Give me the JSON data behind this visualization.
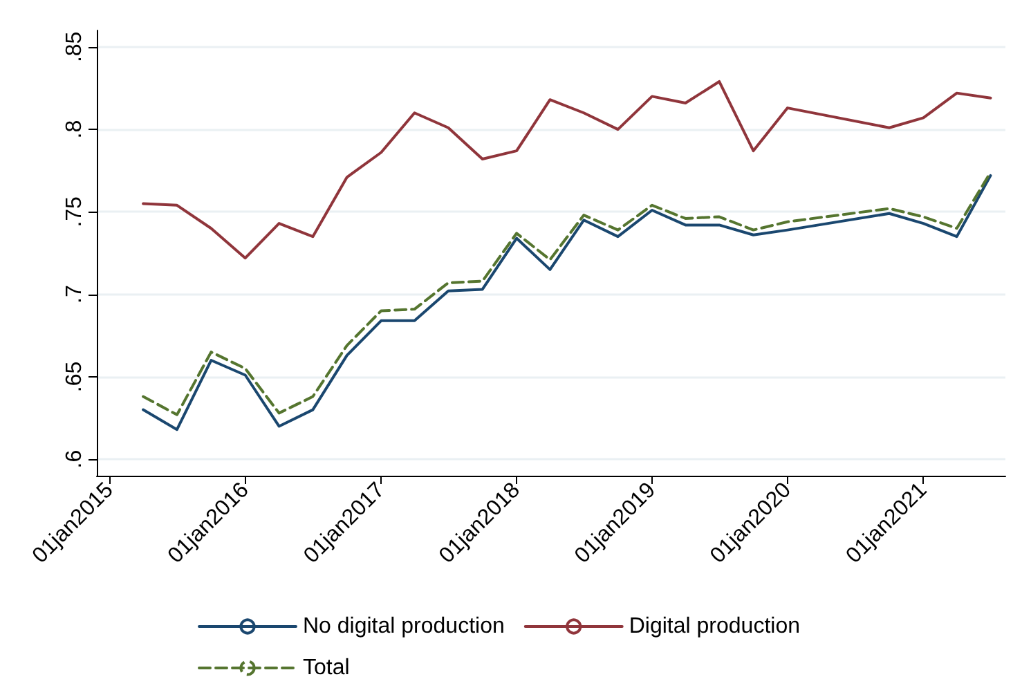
{
  "chart_data": {
    "type": "line",
    "marker": "none",
    "grid": "y",
    "legend": "bottom",
    "xlim": [
      "2014-11-27",
      "2021-08-10"
    ],
    "xticks": [
      {
        "value": "2015-01-01",
        "label": "01jan2015"
      },
      {
        "value": "2016-01-01",
        "label": "01jan2016"
      },
      {
        "value": "2017-01-01",
        "label": "01jan2017"
      },
      {
        "value": "2018-01-01",
        "label": "01jan2018"
      },
      {
        "value": "2019-01-01",
        "label": "01jan2019"
      },
      {
        "value": "2020-01-01",
        "label": "01jan2020"
      },
      {
        "value": "2021-01-01",
        "label": "01jan2021"
      }
    ],
    "ylim": [
      0.59,
      0.86
    ],
    "yticks": [
      {
        "value": 0.6,
        "label": ".6"
      },
      {
        "value": 0.65,
        "label": ".65"
      },
      {
        "value": 0.7,
        "label": ".7"
      },
      {
        "value": 0.75,
        "label": ".75"
      },
      {
        "value": 0.8,
        "label": ".8"
      },
      {
        "value": 0.85,
        "label": ".85"
      }
    ],
    "x": [
      "2015-04",
      "2015-07",
      "2015-10",
      "2016-01",
      "2016-04",
      "2016-07",
      "2016-10",
      "2017-01",
      "2017-04",
      "2017-07",
      "2017-10",
      "2018-01",
      "2018-04",
      "2018-07",
      "2018-10",
      "2019-01",
      "2019-04",
      "2019-07",
      "2019-10",
      "2020-01",
      "2020-10",
      "2021-01",
      "2021-04",
      "2021-07"
    ],
    "series": [
      {
        "name": "No digital production",
        "color": "#1a476f",
        "line_style": "solid",
        "values": [
          0.63,
          0.618,
          0.66,
          0.651,
          0.62,
          0.63,
          0.663,
          0.684,
          0.684,
          0.702,
          0.703,
          0.734,
          0.715,
          0.745,
          0.735,
          0.751,
          0.742,
          0.742,
          0.736,
          0.739,
          0.749,
          0.743,
          0.735,
          0.772
        ]
      },
      {
        "name": "Digital production",
        "color": "#90353b",
        "line_style": "solid",
        "values": [
          0.755,
          0.754,
          0.74,
          0.722,
          0.743,
          0.735,
          0.771,
          0.786,
          0.81,
          0.801,
          0.782,
          0.787,
          0.818,
          0.81,
          0.8,
          0.82,
          0.816,
          0.829,
          0.787,
          0.813,
          0.801,
          0.807,
          0.822,
          0.819
        ]
      },
      {
        "name": "Total",
        "color": "#55752f",
        "line_style": "dashed",
        "values": [
          0.638,
          0.627,
          0.665,
          0.655,
          0.628,
          0.638,
          0.669,
          0.69,
          0.691,
          0.707,
          0.708,
          0.737,
          0.721,
          0.748,
          0.739,
          0.754,
          0.746,
          0.747,
          0.739,
          0.744,
          0.752,
          0.747,
          0.74,
          0.774
        ]
      }
    ]
  }
}
